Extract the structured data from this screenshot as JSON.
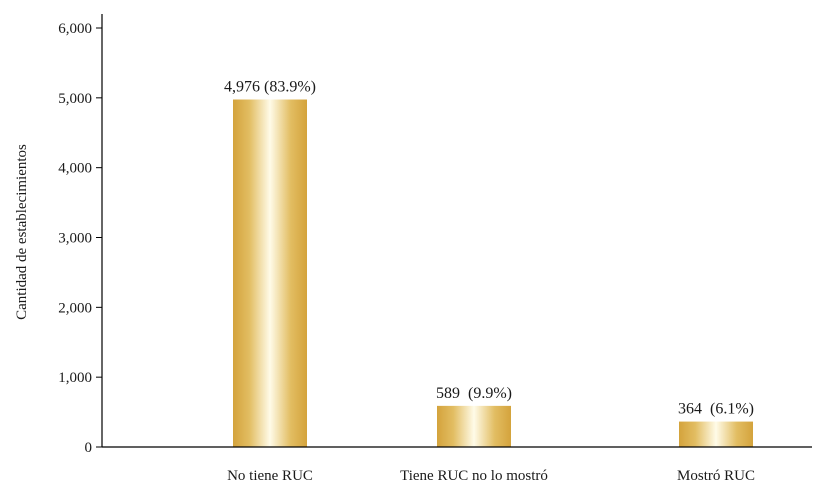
{
  "chart_data": {
    "type": "bar",
    "title": "",
    "xlabel": "",
    "ylabel": "Cantidad de establecimientos",
    "ylim": [
      0,
      6000
    ],
    "yticks": [
      0,
      1000,
      2000,
      3000,
      4000,
      5000,
      6000
    ],
    "ytick_labels": [
      "0",
      "1,000",
      "2,000",
      "3,000",
      "4,000",
      "5,000",
      "6,000"
    ],
    "categories": [
      "No tiene RUC",
      "Tiene RUC no lo mostró",
      "Mostró RUC"
    ],
    "values": [
      4976,
      589,
      364
    ],
    "data_labels": [
      "4,976 (83.9%)",
      "589  (9.9%)",
      "364  (6.1%)"
    ],
    "bar_color": "#d4a33c",
    "bar_highlight": "#fffbe8",
    "grid": false,
    "legend": "none"
  }
}
